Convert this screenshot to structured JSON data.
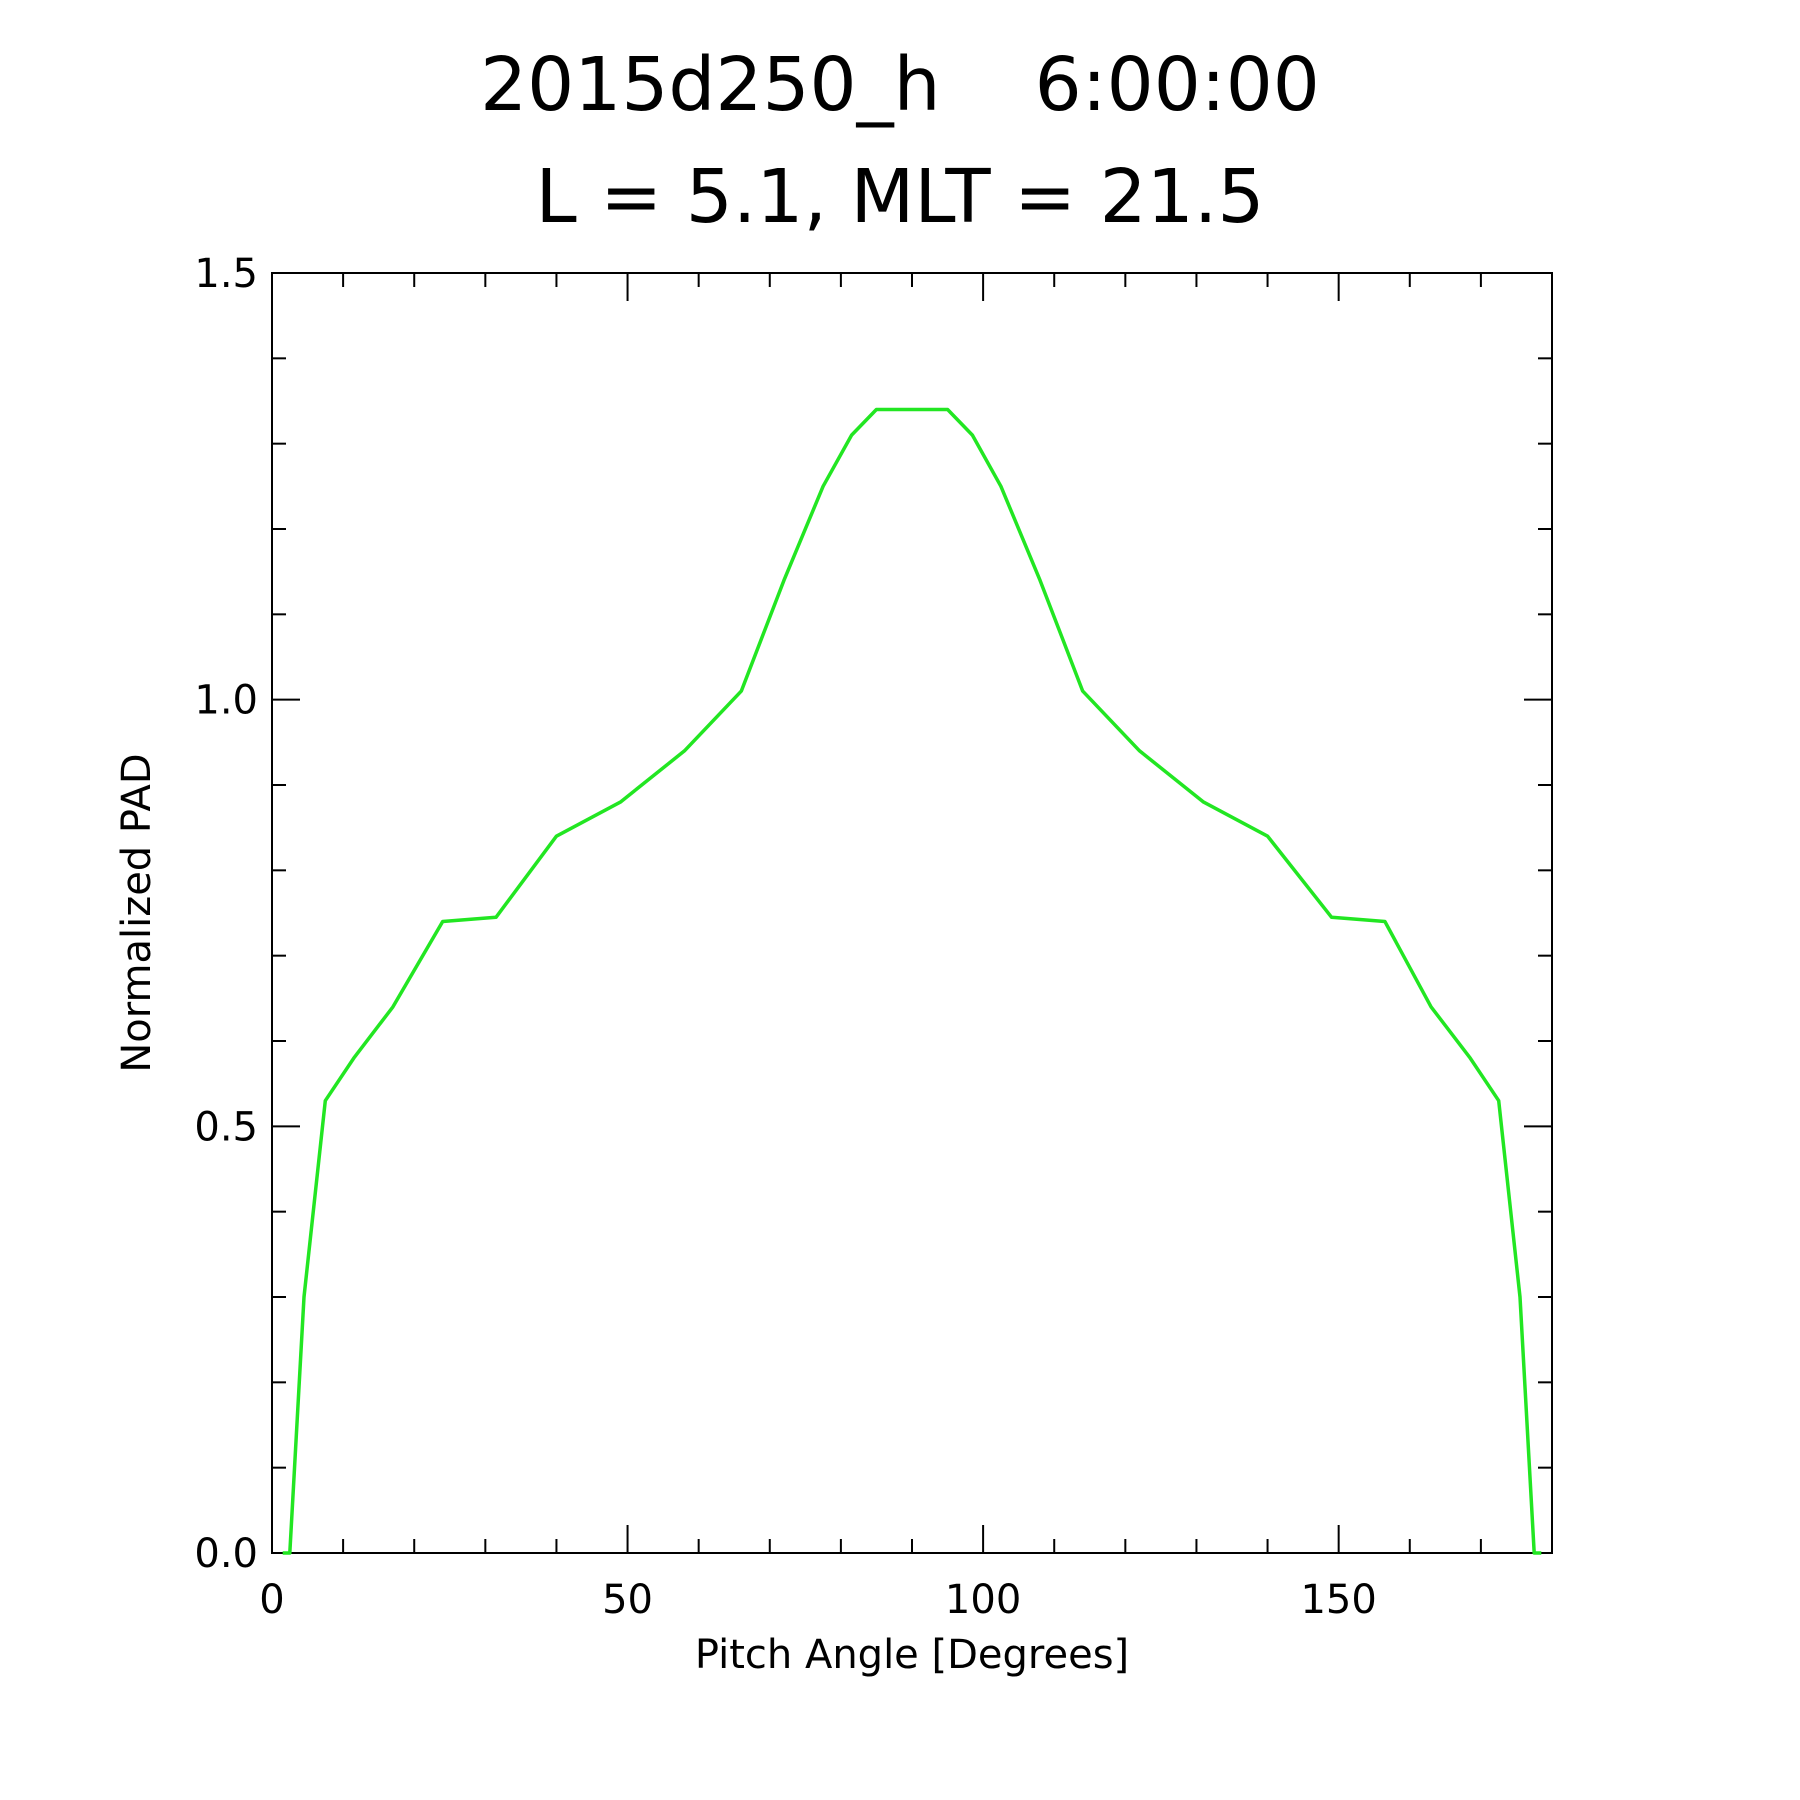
{
  "chart_data": {
    "type": "line",
    "title": "2015d250_h    6:00:00",
    "subtitle": "L = 5.1, MLT = 21.5",
    "xlabel": "Pitch Angle [Degrees]",
    "ylabel": "Normalized PAD",
    "xlim": [
      0,
      180
    ],
    "ylim": [
      0,
      1.5
    ],
    "xticks": [
      "0",
      "50",
      "100",
      "150"
    ],
    "yticks": [
      "0.0",
      "0.5",
      "1.0",
      "1.5"
    ],
    "grid": false,
    "line_color": "#22e622",
    "series": [
      {
        "x": [
          1.5,
          2.5,
          4.5,
          7.5,
          11.5,
          17,
          24,
          31.5,
          40,
          49,
          58,
          66,
          72,
          77.5,
          81.5,
          85,
          95,
          98.5,
          102.5,
          108,
          114,
          122,
          131,
          140,
          149,
          156.5,
          163,
          168.5,
          172.5,
          175.5,
          177.5,
          178.5
        ],
        "y": [
          0,
          0,
          0.3,
          0.53,
          0.58,
          0.64,
          0.74,
          0.745,
          0.84,
          0.88,
          0.94,
          1.01,
          1.14,
          1.25,
          1.31,
          1.34,
          1.34,
          1.31,
          1.25,
          1.14,
          1.01,
          0.94,
          0.88,
          0.84,
          0.745,
          0.74,
          0.64,
          0.58,
          0.53,
          0.3,
          0,
          0
        ]
      }
    ]
  }
}
